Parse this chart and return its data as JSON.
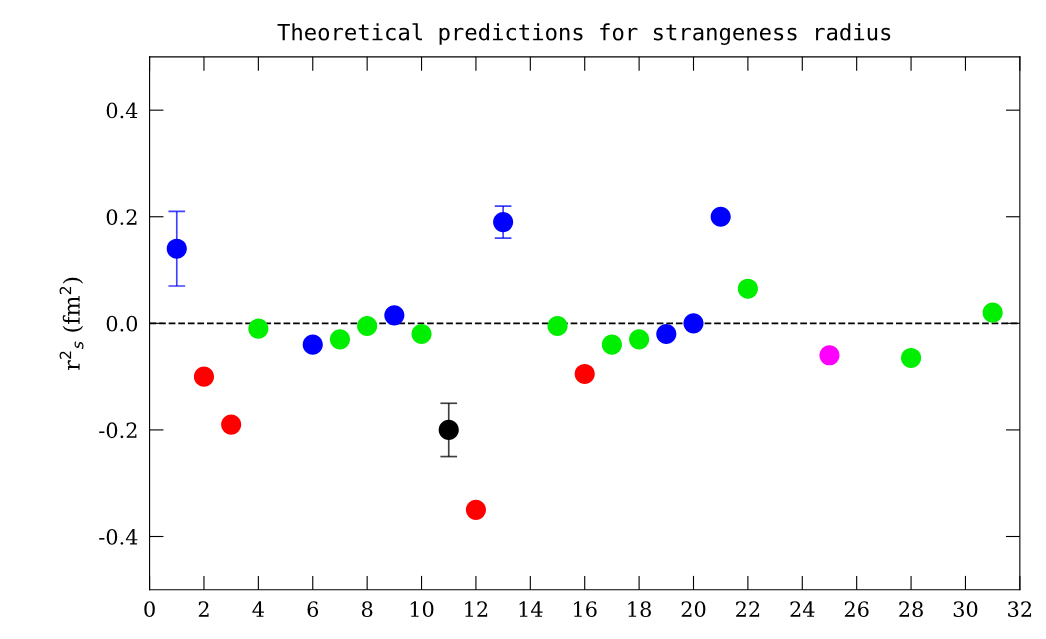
{
  "chart_data": {
    "type": "scatter",
    "title": "Theoretical predictions for strangeness radius",
    "ylabel": "r$^{2}$$_{s}$ (fm$^{2}$)",
    "series": [
      {
        "x": [
          1,
          2,
          3,
          4,
          6,
          7,
          8,
          9,
          10,
          11,
          12,
          13,
          15,
          16,
          17,
          18,
          19,
          20,
          21,
          22,
          25,
          28,
          31
        ],
        "values": [
          0.14,
          -0.1,
          -0.19,
          -0.01,
          -0.04,
          -0.03,
          -0.005,
          0.015,
          -0.02,
          -0.2,
          -0.35,
          0.19,
          -0.005,
          -0.095,
          -0.04,
          -0.03,
          -0.02,
          0.0,
          0.2,
          0.065,
          -0.06,
          -0.065,
          0.02
        ],
        "errors": [
          [
            0.07,
            0.21
          ],
          null,
          null,
          null,
          null,
          null,
          null,
          null,
          null,
          [
            -0.25,
            -0.15
          ],
          null,
          [
            0.16,
            0.22
          ],
          null,
          null,
          null,
          null,
          null,
          null,
          null,
          null,
          null,
          null,
          null
        ],
        "colors": [
          "#0000ff",
          "#ff0000",
          "#ff0000",
          "#00ee00",
          "#0000ff",
          "#00ee00",
          "#00ee00",
          "#0000ff",
          "#00ee00",
          "#000000",
          "#ff0000",
          "#0000ff",
          "#00ee00",
          "#ff0000",
          "#00ee00",
          "#00ee00",
          "#0000ff",
          "#0000ff",
          "#0000ff",
          "#00ee00",
          "#ff00ff",
          "#00ee00",
          "#00ee00"
        ]
      }
    ],
    "xlim": [
      0,
      32
    ],
    "xticks": [
      0,
      2,
      4,
      6,
      8,
      10,
      12,
      14,
      16,
      18,
      20,
      22,
      24,
      26,
      28,
      30,
      32
    ],
    "ylim": [
      -0.5,
      0.5
    ],
    "yticks": [
      {
        "value": -0.4,
        "label": "-0.4"
      },
      {
        "value": -0.2,
        "label": "-0.2"
      },
      {
        "value": 0.0,
        "label": "0.0"
      },
      {
        "value": 0.2,
        "label": "0.2"
      },
      {
        "value": 0.4,
        "label": "0.4"
      }
    ],
    "ref_lines": [
      {
        "axis": "y",
        "value": 0.0,
        "label": null,
        "color": "#000000",
        "line_style": "dashed"
      }
    ],
    "marker": "circle",
    "grid": false,
    "legend": false
  }
}
